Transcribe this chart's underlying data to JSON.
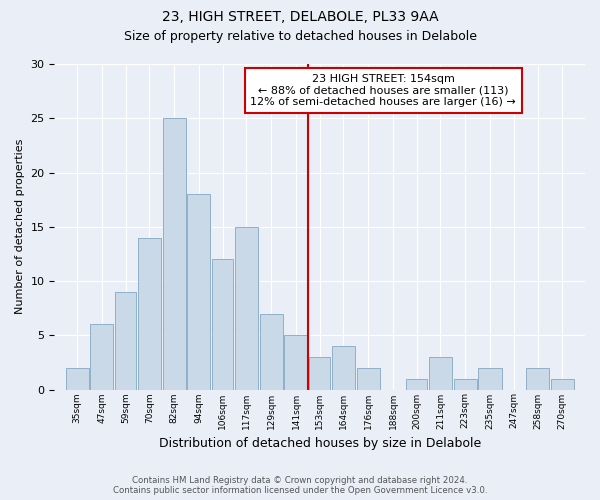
{
  "title1": "23, HIGH STREET, DELABOLE, PL33 9AA",
  "title2": "Size of property relative to detached houses in Delabole",
  "xlabel": "Distribution of detached houses by size in Delabole",
  "ylabel": "Number of detached properties",
  "footer1": "Contains HM Land Registry data © Crown copyright and database right 2024.",
  "footer2": "Contains public sector information licensed under the Open Government Licence v3.0.",
  "annotation_line1": "23 HIGH STREET: 154sqm",
  "annotation_line2": "← 88% of detached houses are smaller (113)",
  "annotation_line3": "12% of semi-detached houses are larger (16) →",
  "bar_color": "#c9d9e8",
  "bar_edge_color": "#8fafc8",
  "vline_color": "#cc0000",
  "vline_x_index": 10,
  "categories": [
    "35sqm",
    "47sqm",
    "59sqm",
    "70sqm",
    "82sqm",
    "94sqm",
    "106sqm",
    "117sqm",
    "129sqm",
    "141sqm",
    "153sqm",
    "164sqm",
    "176sqm",
    "188sqm",
    "200sqm",
    "211sqm",
    "223sqm",
    "235sqm",
    "247sqm",
    "258sqm",
    "270sqm"
  ],
  "bin_edges": [
    35,
    47,
    59,
    70,
    82,
    94,
    106,
    117,
    129,
    141,
    153,
    164,
    176,
    188,
    200,
    211,
    223,
    235,
    247,
    258,
    270,
    282
  ],
  "values": [
    2,
    6,
    9,
    14,
    25,
    18,
    12,
    15,
    7,
    5,
    3,
    4,
    2,
    0,
    1,
    3,
    1,
    2,
    0,
    2,
    1
  ],
  "ylim": [
    0,
    30
  ],
  "yticks": [
    0,
    5,
    10,
    15,
    20,
    25,
    30
  ],
  "background_color": "#eaeff7",
  "plot_bg_color": "#eaeff7",
  "grid_color": "#ffffff",
  "title1_fontsize": 10,
  "title2_fontsize": 9,
  "xlabel_fontsize": 9,
  "ylabel_fontsize": 8,
  "annotation_box_color": "#ffffff",
  "annotation_border_color": "#cc0000",
  "annotation_fontsize": 8
}
